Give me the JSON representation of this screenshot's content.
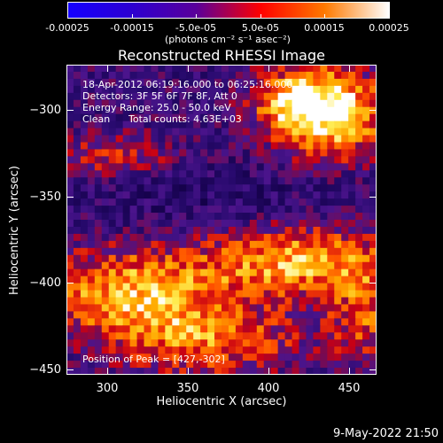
{
  "colorbar": {
    "tick_labels": [
      "-0.00025",
      "-0.00015",
      "-5.0e-05",
      "5.0e-05",
      "0.00015",
      "0.00025"
    ],
    "tick_values": [
      -0.00025,
      -0.00015,
      -5e-05,
      5e-05,
      0.00015,
      0.00025
    ],
    "range": [
      -0.00025,
      0.00025
    ],
    "units_label": "(photons cm⁻² s⁻¹ asec⁻²)",
    "colors": [
      "#1500ff",
      "#2d00d0",
      "#5a009a",
      "#ff0000",
      "#ff7a00",
      "#ffffff"
    ]
  },
  "plot": {
    "title": "Reconstructed RHESSI Image",
    "xlabel": "Heliocentric X (arcsec)",
    "ylabel": "Heliocentric Y (arcsec)",
    "x_range": [
      275,
      467
    ],
    "y_range": [
      -453,
      -274
    ],
    "x_ticks": [
      300,
      350,
      400,
      450
    ],
    "y_ticks": [
      -300,
      -350,
      -400,
      -450
    ],
    "x_tick_labels": [
      "300",
      "350",
      "400",
      "450"
    ],
    "y_tick_labels": [
      "−300",
      "−350",
      "−400",
      "−450"
    ]
  },
  "info": {
    "line1": "18-Apr-2012 06:19:16.000 to 06:25:16.000",
    "line2": "Detectors: 3F 5F 6F 7F 8F, Att 0",
    "line3": "Energy Range: 25.0 - 50.0 keV",
    "line4_method": "Clean",
    "line4_counts": "Total counts: 4.63E+03",
    "peak": "Position of Peak = [427,-302]"
  },
  "footer": {
    "date": "9-May-2022 21:50"
  }
}
